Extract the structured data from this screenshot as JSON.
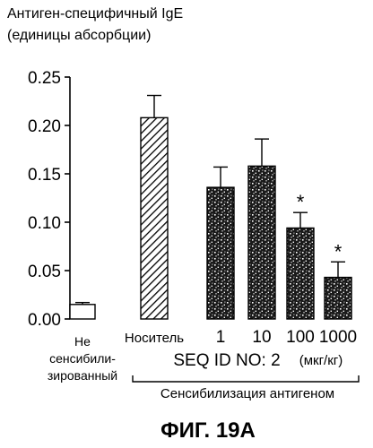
{
  "figure_label": "ФИГ. 19А",
  "chart_data": {
    "type": "bar",
    "ylabel_lines": [
      "Антиген-специфичный IgE",
      "(единицы абсорбции)"
    ],
    "ylim": [
      0,
      0.25
    ],
    "yticks": [
      "0.00",
      "0.05",
      "0.10",
      "0.15",
      "0.20",
      "0.25"
    ],
    "grid": false,
    "categories": [
      "Не сенсибилизированный",
      "Носитель",
      "1",
      "10",
      "100",
      "1000"
    ],
    "category_label_lines": [
      [
        "Не",
        "сенсибили-",
        "зированный"
      ],
      [
        "Носитель"
      ],
      [
        "1"
      ],
      [
        "10"
      ],
      [
        "100"
      ],
      [
        "1000"
      ]
    ],
    "values": [
      0.015,
      0.208,
      0.136,
      0.158,
      0.094,
      0.043
    ],
    "errors": [
      0.002,
      0.023,
      0.021,
      0.028,
      0.016,
      0.016
    ],
    "fills": [
      "open",
      "hatched",
      "stippled",
      "stippled",
      "stippled",
      "stippled"
    ],
    "significance": [
      "",
      "",
      "",
      "",
      "*",
      "*"
    ],
    "group_label": "SEQ ID NO: 2",
    "group_unit": "(мкг/кг)",
    "bracket_label": "Сенсибилизация антигеном"
  }
}
